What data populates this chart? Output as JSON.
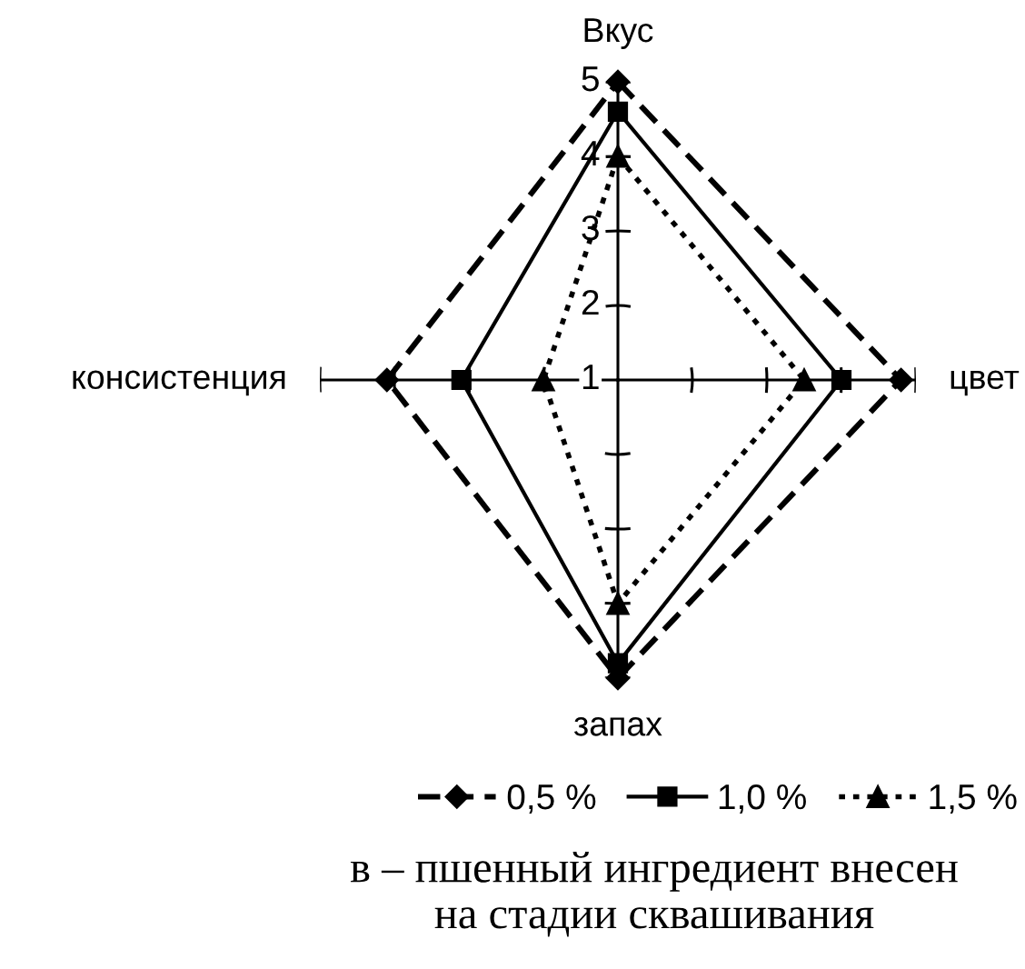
{
  "chart_data": {
    "type": "radar",
    "categories": [
      "Вкус",
      "цвет",
      "запах",
      "консистенция"
    ],
    "ylim": [
      1,
      5
    ],
    "yticks": [
      1,
      2,
      3,
      4,
      5
    ],
    "legend": "bottom",
    "series": [
      {
        "name": "0,5 %",
        "color": "#000000",
        "values": [
          5,
          4.8,
          5,
          4.1
        ],
        "marker": "diamond",
        "line_style": "dashed"
      },
      {
        "name": "1,0 %",
        "color": "#000000",
        "values": [
          4.6,
          4,
          4.8,
          3.1
        ],
        "marker": "square",
        "line_style": "solid"
      },
      {
        "name": "1,5 %",
        "color": "#000000",
        "values": [
          4,
          3.5,
          4,
          2
        ],
        "marker": "triangle",
        "line_style": "dotted"
      }
    ],
    "annotations": [
      "в – пшенный ингредиент внесен\nна стадии сквашивания"
    ]
  }
}
